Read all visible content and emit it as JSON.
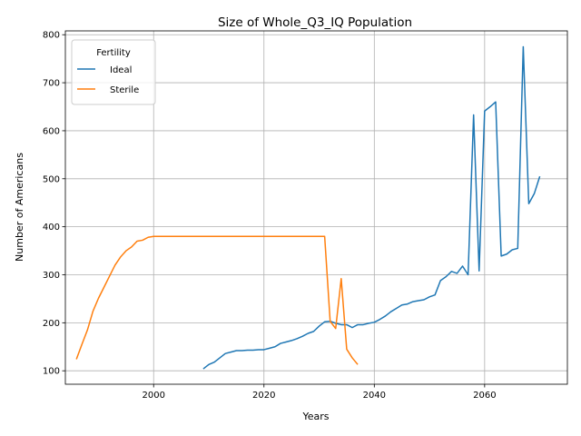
{
  "chart_data": {
    "type": "line",
    "title": "Size of Whole_Q3_IQ Population",
    "xlabel": "Years",
    "ylabel": "Number of Americans",
    "xlim": [
      1984,
      2075
    ],
    "ylim": [
      72,
      808
    ],
    "xticks": [
      2000,
      2020,
      2040,
      2060
    ],
    "yticks": [
      100,
      200,
      300,
      400,
      500,
      600,
      700,
      800
    ],
    "grid": true,
    "legend": {
      "title": "Fertility",
      "placement": "top-left"
    },
    "series": [
      {
        "name": "Ideal",
        "color": "#1f77b4",
        "x": [
          2009,
          2010,
          2011,
          2012,
          2013,
          2014,
          2015,
          2016,
          2017,
          2018,
          2019,
          2020,
          2021,
          2022,
          2023,
          2024,
          2025,
          2026,
          2027,
          2028,
          2029,
          2030,
          2031,
          2032,
          2033,
          2034,
          2035,
          2036,
          2037,
          2038,
          2039,
          2040,
          2041,
          2042,
          2043,
          2044,
          2045,
          2046,
          2047,
          2048,
          2049,
          2050,
          2051,
          2052,
          2053,
          2054,
          2055,
          2056,
          2057,
          2058,
          2059,
          2060,
          2061,
          2062,
          2063,
          2064,
          2065,
          2066,
          2067,
          2068,
          2069,
          2070
        ],
        "y": [
          104,
          113,
          118,
          127,
          136,
          139,
          142,
          142,
          143,
          143,
          144,
          144,
          147,
          150,
          157,
          160,
          163,
          167,
          172,
          178,
          182,
          193,
          202,
          203,
          199,
          196,
          196,
          190,
          196,
          196,
          199,
          201,
          207,
          214,
          223,
          230,
          237,
          239,
          244,
          246,
          248,
          254,
          258,
          288,
          296,
          307,
          303,
          318,
          300,
          633,
          308,
          641,
          650,
          660,
          339,
          343,
          352,
          355,
          775,
          448,
          469,
          505
        ]
      },
      {
        "name": "Sterile",
        "color": "#ff7f0e",
        "x": [
          1986,
          1987,
          1988,
          1989,
          1990,
          1991,
          1992,
          1993,
          1994,
          1995,
          1996,
          1997,
          1998,
          1999,
          2000,
          2001,
          2005,
          2010,
          2015,
          2020,
          2025,
          2030,
          2031,
          2032,
          2033,
          2034,
          2035,
          2036,
          2037
        ],
        "y": [
          124,
          155,
          185,
          224,
          251,
          274,
          297,
          320,
          337,
          350,
          358,
          370,
          372,
          378,
          380,
          380,
          380,
          380,
          380,
          380,
          380,
          380,
          380,
          203,
          188,
          292,
          145,
          127,
          113
        ]
      }
    ]
  }
}
